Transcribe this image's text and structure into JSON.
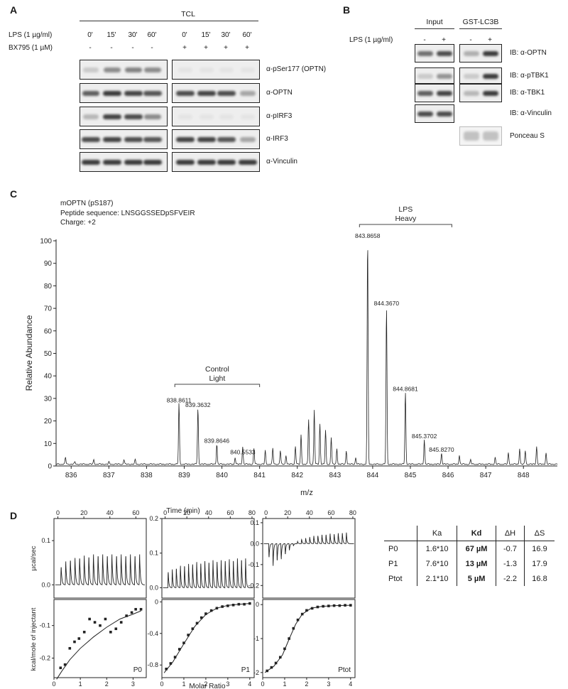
{
  "panel_A": {
    "label": "A",
    "tcl_label": "TCL",
    "lps_row_label": "LPS (1 µg/ml)",
    "bx_row_label": "BX795 (1 µM)",
    "times": [
      "0'",
      "15'",
      "30'",
      "60'",
      "0'",
      "15'",
      "30'",
      "60'"
    ],
    "bx_signs": [
      "-",
      "-",
      "-",
      "-",
      "+",
      "+",
      "+",
      "+"
    ],
    "blot_labels": [
      "α-pSer177 (OPTN)",
      "α-OPTN",
      "α-pIRF3",
      "α-IRF3",
      "α-Vinculin"
    ],
    "band_intensity": [
      [
        0.2,
        0.55,
        0.6,
        0.55,
        0.05,
        0.05,
        0.05,
        0.05
      ],
      [
        0.8,
        1.0,
        0.95,
        0.85,
        0.9,
        0.95,
        0.9,
        0.4
      ],
      [
        0.3,
        0.95,
        0.9,
        0.55,
        0.05,
        0.05,
        0.05,
        0.05
      ],
      [
        0.9,
        0.95,
        0.9,
        0.85,
        0.95,
        0.95,
        0.85,
        0.4
      ],
      [
        1.0,
        1.0,
        1.0,
        1.0,
        1.0,
        1.0,
        1.0,
        1.0
      ]
    ]
  },
  "panel_B": {
    "label": "B",
    "input_label": "Input",
    "gst_label": "GST-LC3B",
    "lps_row_label": "LPS (1 µg/ml)",
    "signs": [
      "-",
      "+",
      "-",
      "+"
    ],
    "blot_labels": [
      "IB: α-OPTN",
      "IB: α-pTBK1",
      "IB: α-TBK1",
      "IB: α-Vinculin",
      "Ponceau S"
    ],
    "band_intensity": [
      [
        0.7,
        0.9,
        0.35,
        1.0
      ],
      [
        0.2,
        0.5,
        0.2,
        1.0
      ],
      [
        0.8,
        0.95,
        0.3,
        1.0
      ],
      [
        0.9,
        0.9
      ],
      [
        0.35,
        0.35
      ]
    ]
  },
  "panel_C": {
    "label": "C",
    "info_lines": [
      "mOPTN (pS187)",
      "Peptide sequence: LNSGGSSEDpSFVEIR",
      "Charge: +2"
    ],
    "lps_group": [
      "LPS",
      "Heavy"
    ],
    "control_group": [
      "Control",
      "Light"
    ],
    "xlabel": "m/z",
    "ylabel": "Relative Abundance"
  },
  "panel_D": {
    "label": "D",
    "time_label": "Time (min)",
    "power_ylabel": "µcal/sec",
    "heat_ylabel": "kcal/mole of injectant",
    "xlabel": "Molar Ratio",
    "plot_names": [
      "P0",
      "P1",
      "Ptot"
    ],
    "table": {
      "headers": [
        "",
        "Ka",
        "Kd",
        "ΔH",
        "ΔS"
      ],
      "rows": [
        [
          "P0",
          "1.6*10",
          "67 µM",
          "-0.7",
          "16.9"
        ],
        [
          "P1",
          "7.6*10",
          "13 µM",
          "-1.3",
          "17.9"
        ],
        [
          "Ptot",
          "2.1*10",
          "5 µM",
          "-2.2",
          "16.8"
        ]
      ]
    }
  },
  "chart_data": [
    {
      "type": "line",
      "name": "mass spectrum",
      "xlabel": "m/z",
      "ylabel": "Relative Abundance",
      "xlim": [
        835.6,
        848.9
      ],
      "ylim": [
        0,
        100
      ],
      "xticks": [
        836,
        837,
        838,
        839,
        840,
        841,
        842,
        843,
        844,
        845,
        846,
        847,
        848
      ],
      "yticks": [
        0,
        10,
        20,
        30,
        40,
        50,
        60,
        70,
        80,
        90,
        100
      ],
      "labeled_peaks": [
        {
          "x": 838.8611,
          "y": 27,
          "label": "838.8611"
        },
        {
          "x": 839.3632,
          "y": 25,
          "label": "839.3632"
        },
        {
          "x": 839.8646,
          "y": 9,
          "label": "839.8646"
        },
        {
          "x": 840.5533,
          "y": 4,
          "label": "840.5533"
        },
        {
          "x": 843.8658,
          "y": 100,
          "label": "843.8658"
        },
        {
          "x": 844.367,
          "y": 70,
          "label": "844.3670"
        },
        {
          "x": 844.8681,
          "y": 32,
          "label": "844.8681"
        },
        {
          "x": 845.3702,
          "y": 11,
          "label": "845.3702"
        },
        {
          "x": 845.827,
          "y": 5,
          "label": "845.8270"
        }
      ],
      "other_peaks": [
        [
          835.85,
          3
        ],
        [
          836.1,
          1
        ],
        [
          836.6,
          2
        ],
        [
          837.0,
          1
        ],
        [
          837.4,
          2
        ],
        [
          837.7,
          2
        ],
        [
          840.35,
          3
        ],
        [
          840.55,
          4
        ],
        [
          840.85,
          7
        ],
        [
          841.15,
          6
        ],
        [
          841.35,
          7
        ],
        [
          841.55,
          6
        ],
        [
          841.7,
          4
        ],
        [
          841.95,
          8
        ],
        [
          842.1,
          13
        ],
        [
          842.3,
          20
        ],
        [
          842.45,
          24
        ],
        [
          842.6,
          18
        ],
        [
          842.75,
          15
        ],
        [
          842.9,
          12
        ],
        [
          843.05,
          7
        ],
        [
          843.3,
          6
        ],
        [
          843.55,
          3
        ],
        [
          846.3,
          4
        ],
        [
          846.6,
          2
        ],
        [
          847.25,
          3
        ],
        [
          847.6,
          5
        ],
        [
          847.9,
          7
        ],
        [
          848.05,
          6
        ],
        [
          848.35,
          8
        ],
        [
          848.6,
          5
        ]
      ]
    },
    {
      "type": "line",
      "name": "ITC raw P0",
      "xlabel": "Time (min)",
      "ylabel": "µcal/sec",
      "xlim": [
        -3,
        68
      ],
      "ylim": [
        -0.03,
        0.15
      ],
      "xticks": [
        0,
        20,
        40,
        60
      ],
      "yticks": [
        0.0,
        0.1
      ],
      "injections": {
        "start": 2.2,
        "interval": 3.55,
        "count": 18,
        "heights": [
          0.08,
          0.1,
          0.11,
          0.115,
          0.12,
          0.125,
          0.125,
          0.13,
          0.13,
          0.13,
          0.13,
          0.13,
          0.13,
          0.13,
          0.13,
          0.13,
          0.13,
          0.13
        ]
      }
    },
    {
      "type": "scatter",
      "name": "ITC integrated P0",
      "xlabel": "Molar Ratio",
      "ylabel": "kcal/mole of injectant",
      "xlim": [
        0,
        3.5
      ],
      "ylim": [
        -0.26,
        -0.02
      ],
      "xticks": [
        0,
        1,
        2,
        3
      ],
      "yticks": [
        -0.2,
        -0.1
      ],
      "points": [
        [
          0.25,
          -0.23
        ],
        [
          0.42,
          -0.22
        ],
        [
          0.6,
          -0.17
        ],
        [
          0.78,
          -0.15
        ],
        [
          0.95,
          -0.14
        ],
        [
          1.15,
          -0.12
        ],
        [
          1.35,
          -0.08
        ],
        [
          1.55,
          -0.09
        ],
        [
          1.75,
          -0.1
        ],
        [
          1.95,
          -0.08
        ],
        [
          2.15,
          -0.12
        ],
        [
          2.35,
          -0.11
        ],
        [
          2.55,
          -0.09
        ],
        [
          2.75,
          -0.07
        ],
        [
          2.95,
          -0.06
        ],
        [
          3.1,
          -0.05
        ],
        [
          3.3,
          -0.05
        ]
      ],
      "fit": [
        [
          0.1,
          -0.265
        ],
        [
          0.3,
          -0.24
        ],
        [
          0.6,
          -0.205
        ],
        [
          1.0,
          -0.17
        ],
        [
          1.5,
          -0.135
        ],
        [
          2.0,
          -0.105
        ],
        [
          2.5,
          -0.08
        ],
        [
          3.0,
          -0.065
        ],
        [
          3.3,
          -0.055
        ]
      ]
    },
    {
      "type": "line",
      "name": "ITC raw P1",
      "xlabel": "Time (min)",
      "ylabel": "µcal/sec",
      "xlim": [
        -3,
        82
      ],
      "ylim": [
        -0.03,
        0.2
      ],
      "xticks": [
        0,
        20,
        40,
        60,
        80
      ],
      "yticks": [
        0.0,
        0.1,
        0.2
      ],
      "injections": {
        "start": 2.5,
        "interval": 3.75,
        "count": 20,
        "heights": [
          0.09,
          0.1,
          0.11,
          0.12,
          0.125,
          0.13,
          0.135,
          0.14,
          0.14,
          0.145,
          0.145,
          0.15,
          0.15,
          0.15,
          0.155,
          0.155,
          0.155,
          0.16,
          0.16,
          0.16
        ]
      }
    },
    {
      "type": "scatter",
      "name": "ITC integrated P1",
      "xlabel": "Molar Ratio",
      "ylabel": "kcal/mole of injectant",
      "xlim": [
        0,
        4.2
      ],
      "ylim": [
        -0.96,
        0.03
      ],
      "xticks": [
        0,
        1,
        2,
        3,
        4
      ],
      "yticks": [
        0.0,
        -0.4,
        -0.8
      ],
      "points": [
        [
          0.2,
          -0.85
        ],
        [
          0.4,
          -0.78
        ],
        [
          0.6,
          -0.7
        ],
        [
          0.8,
          -0.6
        ],
        [
          1.0,
          -0.52
        ],
        [
          1.2,
          -0.42
        ],
        [
          1.4,
          -0.34
        ],
        [
          1.6,
          -0.27
        ],
        [
          1.8,
          -0.2
        ],
        [
          2.0,
          -0.15
        ],
        [
          2.25,
          -0.11
        ],
        [
          2.5,
          -0.08
        ],
        [
          2.75,
          -0.06
        ],
        [
          3.0,
          -0.05
        ],
        [
          3.25,
          -0.04
        ],
        [
          3.5,
          -0.03
        ],
        [
          3.75,
          -0.03
        ],
        [
          4.0,
          -0.02
        ]
      ],
      "fit": [
        [
          0.1,
          -0.9
        ],
        [
          0.5,
          -0.76
        ],
        [
          1.0,
          -0.53
        ],
        [
          1.5,
          -0.31
        ],
        [
          2.0,
          -0.16
        ],
        [
          2.5,
          -0.08
        ],
        [
          3.0,
          -0.045
        ],
        [
          3.5,
          -0.03
        ],
        [
          4.0,
          -0.02
        ]
      ]
    },
    {
      "type": "line",
      "name": "ITC raw Ptot",
      "xlabel": "Time (min)",
      "ylabel": "µcal/sec",
      "xlim": [
        -3,
        82
      ],
      "ylim": [
        -0.26,
        0.12
      ],
      "xticks": [
        0,
        20,
        40,
        60,
        80
      ],
      "yticks": [
        -0.2,
        -0.1,
        0.0,
        0.1
      ],
      "injections": {
        "start": 2.5,
        "interval": 3.75,
        "count": 20,
        "heights": [
          -0.13,
          -0.2,
          -0.16,
          -0.14,
          -0.1,
          -0.06,
          -0.02,
          0.02,
          0.04,
          0.05,
          0.06,
          0.07,
          0.075,
          0.08,
          0.085,
          0.09,
          0.09,
          0.095,
          0.1,
          0.1
        ]
      }
    },
    {
      "type": "scatter",
      "name": "ITC integrated Ptot",
      "xlabel": "Molar Ratio",
      "ylabel": "kcal/mole of injectant",
      "xlim": [
        0,
        4.2
      ],
      "ylim": [
        -2.15,
        0.15
      ],
      "xticks": [
        0,
        1,
        2,
        3,
        4
      ],
      "yticks": [
        0,
        -1,
        -2
      ],
      "points": [
        [
          0.2,
          -1.95
        ],
        [
          0.4,
          -1.85
        ],
        [
          0.6,
          -1.72
        ],
        [
          0.8,
          -1.55
        ],
        [
          1.0,
          -1.3
        ],
        [
          1.2,
          -1.0
        ],
        [
          1.4,
          -0.7
        ],
        [
          1.6,
          -0.45
        ],
        [
          1.8,
          -0.28
        ],
        [
          2.0,
          -0.17
        ],
        [
          2.25,
          -0.11
        ],
        [
          2.5,
          -0.07
        ],
        [
          2.75,
          -0.05
        ],
        [
          3.0,
          -0.04
        ],
        [
          3.25,
          -0.03
        ],
        [
          3.5,
          -0.03
        ],
        [
          3.75,
          -0.02
        ],
        [
          4.0,
          -0.02
        ]
      ],
      "fit": [
        [
          0.1,
          -2.0
        ],
        [
          0.5,
          -1.82
        ],
        [
          0.9,
          -1.48
        ],
        [
          1.2,
          -1.02
        ],
        [
          1.5,
          -0.58
        ],
        [
          1.8,
          -0.28
        ],
        [
          2.2,
          -0.11
        ],
        [
          2.7,
          -0.05
        ],
        [
          3.3,
          -0.03
        ],
        [
          4.0,
          -0.02
        ]
      ]
    }
  ]
}
